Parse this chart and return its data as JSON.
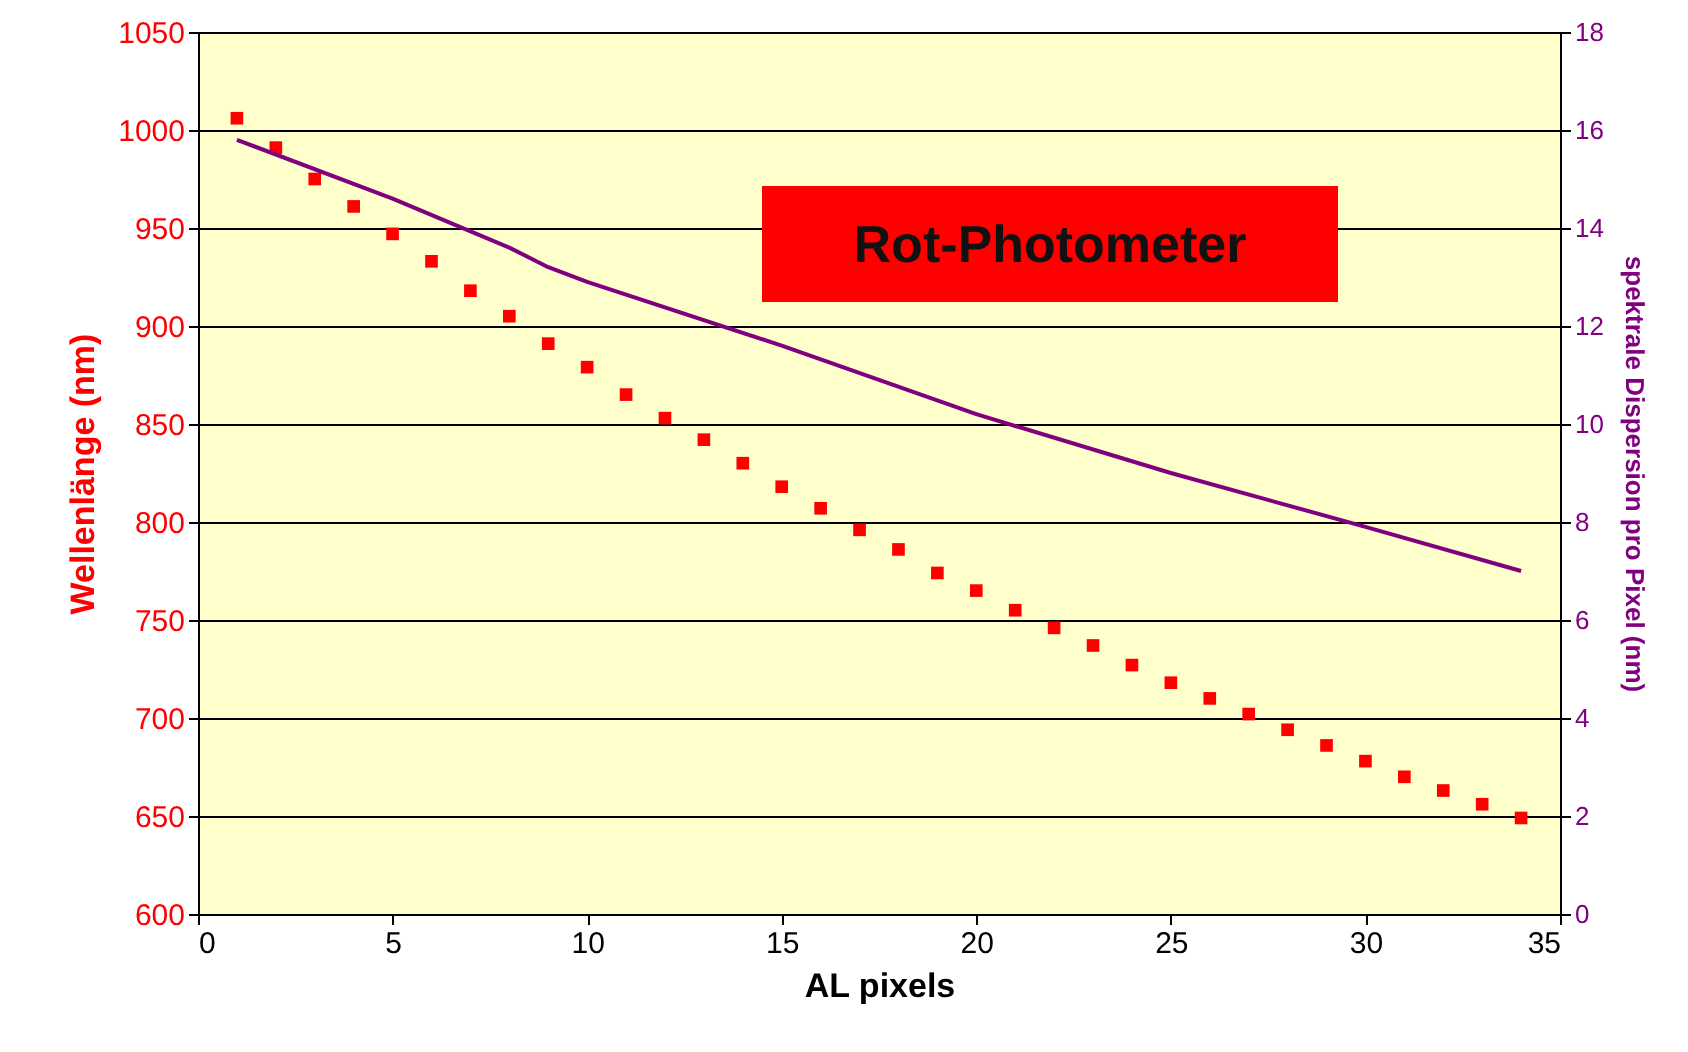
{
  "chart_data": {
    "type": "scatter",
    "title": "Rot-Photometer",
    "xlabel": "AL pixels",
    "ylabel": "Wellenlänge (nm)",
    "y2label": "spektrale Dispersion pro Pixel (nm)",
    "xlim": [
      0,
      35
    ],
    "xticks": [
      0,
      5,
      10,
      15,
      20,
      25,
      30,
      35
    ],
    "ylim": [
      600,
      1050
    ],
    "yticks": [
      600,
      650,
      700,
      750,
      800,
      850,
      900,
      950,
      1000,
      1050
    ],
    "y2lim": [
      0,
      18
    ],
    "y2ticks": [
      0,
      2,
      4,
      6,
      8,
      10,
      12,
      14,
      16,
      18
    ],
    "grid": "y",
    "series": [
      {
        "type": "scatter",
        "marker": "square",
        "color": "#ff0000",
        "axis": "y",
        "x": [
          1,
          2,
          3,
          4,
          5,
          6,
          7,
          8,
          9,
          10,
          11,
          12,
          13,
          14,
          15,
          16,
          17,
          18,
          19,
          20,
          21,
          22,
          23,
          24,
          25,
          26,
          27,
          28,
          29,
          30,
          31,
          32,
          33,
          34
        ],
        "values": [
          1006,
          991,
          975,
          961,
          947,
          933,
          918,
          905,
          891,
          879,
          865,
          853,
          842,
          830,
          818,
          807,
          796,
          786,
          774,
          765,
          755,
          746,
          737,
          727,
          718,
          710,
          702,
          694,
          686,
          678,
          670,
          663,
          656,
          649
        ]
      },
      {
        "type": "line",
        "color": "#800080",
        "axis": "y2",
        "x": [
          1,
          5,
          8,
          9,
          10,
          15,
          20,
          25,
          30,
          34
        ],
        "values": [
          15.8,
          14.6,
          13.6,
          13.2,
          12.9,
          11.6,
          10.2,
          9.0,
          7.9,
          7.0
        ]
      }
    ]
  }
}
